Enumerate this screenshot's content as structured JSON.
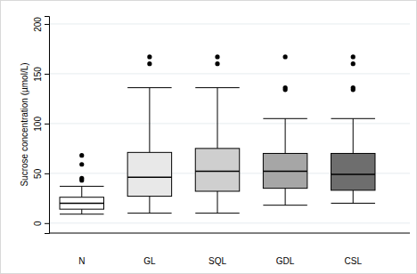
{
  "chart_data": {
    "type": "box",
    "y_label": "Sucrose concentration (µmol/L)",
    "categories": [
      "N",
      "GL",
      "SQL",
      "GDL",
      "CSL"
    ],
    "colors": [
      "#ffffff",
      "#e8e8e8",
      "#cfcfcf",
      "#a6a6a6",
      "#6e6e6e"
    ],
    "boxes": [
      {
        "whisker_low": 9,
        "q1": 14,
        "median": 20,
        "q3": 26,
        "whisker_high": 37,
        "outliers": [
          68,
          59,
          45,
          43
        ]
      },
      {
        "whisker_low": 10,
        "q1": 27,
        "median": 46,
        "q3": 71,
        "whisker_high": 136,
        "outliers": [
          167,
          160
        ]
      },
      {
        "whisker_low": 10,
        "q1": 32,
        "median": 52,
        "q3": 75,
        "whisker_high": 136,
        "outliers": [
          167,
          160
        ]
      },
      {
        "whisker_low": 18,
        "q1": 35,
        "median": 52,
        "q3": 70,
        "whisker_high": 105,
        "outliers": [
          167,
          136,
          134
        ]
      },
      {
        "whisker_low": 20,
        "q1": 33,
        "median": 49,
        "q3": 70,
        "whisker_high": 105,
        "outliers": [
          167,
          160,
          136,
          134
        ]
      }
    ],
    "ylim": [
      -10,
      208
    ],
    "yticks": [
      0,
      50,
      100,
      150,
      200
    ],
    "grid": true
  }
}
